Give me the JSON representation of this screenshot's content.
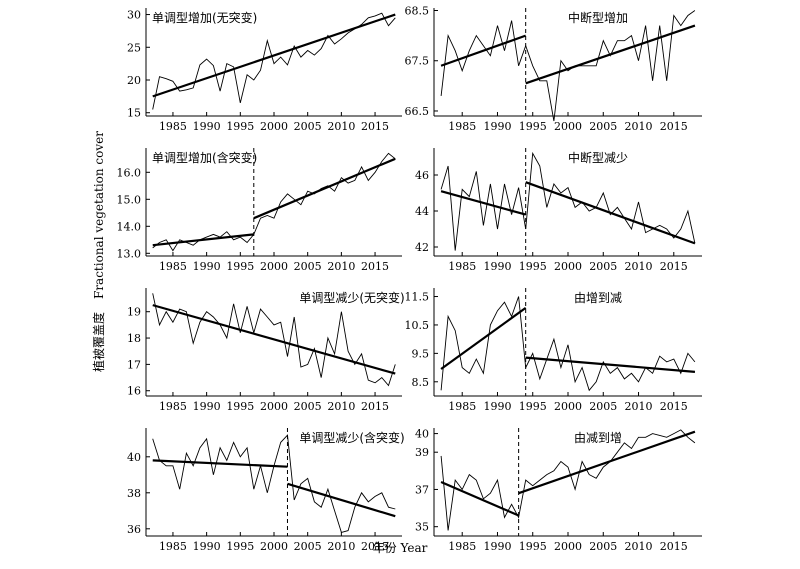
{
  "figure": {
    "ylabel_cn": "植被覆盖度",
    "ylabel_en": "Fractional vegetation cover",
    "xlabel": "年份 Year"
  },
  "chart_data": [
    {
      "type": "line",
      "title": "单调型增加(无突变)",
      "xlim": [
        1981,
        2019
      ],
      "ylim": [
        14.5,
        31
      ],
      "x_ticks": [
        1985,
        1990,
        1995,
        2000,
        2005,
        2010,
        2015
      ],
      "y_ticks": [
        15,
        20,
        25,
        30
      ],
      "x": [
        1982,
        1983,
        1984,
        1985,
        1986,
        1987,
        1988,
        1989,
        1990,
        1991,
        1992,
        1993,
        1994,
        1995,
        1996,
        1997,
        1998,
        1999,
        2000,
        2001,
        2002,
        2003,
        2004,
        2005,
        2006,
        2007,
        2008,
        2009,
        2010,
        2011,
        2012,
        2013,
        2014,
        2015,
        2016,
        2017,
        2018
      ],
      "values": [
        15.5,
        20.5,
        20.2,
        19.8,
        18.3,
        18.5,
        18.8,
        22.3,
        23.2,
        22.2,
        18.3,
        22.5,
        22.0,
        16.5,
        20.8,
        20.0,
        21.5,
        26.0,
        22.5,
        23.5,
        22.3,
        25.2,
        23.5,
        24.5,
        23.8,
        24.8,
        26.8,
        25.5,
        26.3,
        27.2,
        27.8,
        28.5,
        29.5,
        29.8,
        30.2,
        28.3,
        29.5
      ],
      "trends": [
        {
          "x": [
            1982,
            2018
          ],
          "y": [
            17.5,
            30.0
          ]
        }
      ],
      "breakpoint": null
    },
    {
      "type": "line",
      "title": "中断型增加",
      "xlim": [
        1981,
        2019
      ],
      "ylim": [
        66.4,
        68.55
      ],
      "x_ticks": [
        1985,
        1990,
        1995,
        2000,
        2005,
        2010,
        2015
      ],
      "y_ticks": [
        66.5,
        67.5,
        68.5
      ],
      "x": [
        1982,
        1983,
        1984,
        1985,
        1986,
        1987,
        1988,
        1989,
        1990,
        1991,
        1992,
        1993,
        1994,
        1995,
        1996,
        1997,
        1998,
        1999,
        2000,
        2001,
        2002,
        2003,
        2004,
        2005,
        2006,
        2007,
        2008,
        2009,
        2010,
        2011,
        2012,
        2013,
        2014,
        2015,
        2016,
        2017,
        2018
      ],
      "values": [
        66.8,
        68.0,
        67.7,
        67.3,
        67.7,
        68.0,
        67.8,
        67.6,
        68.2,
        67.7,
        68.3,
        67.4,
        67.8,
        67.4,
        67.1,
        67.1,
        66.3,
        67.5,
        67.3,
        67.4,
        67.4,
        67.4,
        67.4,
        67.9,
        67.6,
        67.9,
        67.9,
        68.0,
        67.5,
        68.2,
        67.1,
        68.2,
        67.1,
        68.4,
        68.2,
        68.4,
        68.5
      ],
      "trends": [
        {
          "x": [
            1982,
            1994
          ],
          "y": [
            67.4,
            68.0
          ]
        },
        {
          "x": [
            1994,
            2018
          ],
          "y": [
            67.05,
            68.2
          ]
        }
      ],
      "breakpoint": 1994
    },
    {
      "type": "line",
      "title": "单调型增加(含突变)",
      "xlim": [
        1981,
        2019
      ],
      "ylim": [
        12.9,
        16.9
      ],
      "x_ticks": [
        1985,
        1990,
        1995,
        2000,
        2005,
        2010,
        2015
      ],
      "y_ticks": [
        13.0,
        14.0,
        15.0,
        16.0
      ],
      "y_tick_labels": [
        "13.0",
        "14.0",
        "15.0",
        "16.0"
      ],
      "x": [
        1982,
        1983,
        1984,
        1985,
        1986,
        1987,
        1988,
        1989,
        1990,
        1991,
        1992,
        1993,
        1994,
        1995,
        1996,
        1997,
        1998,
        1999,
        2000,
        2001,
        2002,
        2003,
        2004,
        2005,
        2006,
        2007,
        2008,
        2009,
        2010,
        2011,
        2012,
        2013,
        2014,
        2015,
        2016,
        2017,
        2018
      ],
      "values": [
        13.2,
        13.4,
        13.5,
        13.1,
        13.5,
        13.4,
        13.3,
        13.5,
        13.6,
        13.7,
        13.6,
        13.8,
        13.5,
        13.6,
        13.4,
        13.7,
        14.3,
        14.4,
        14.3,
        14.9,
        15.2,
        15.0,
        14.8,
        15.3,
        15.2,
        15.4,
        15.5,
        15.3,
        15.8,
        15.6,
        15.7,
        16.2,
        15.7,
        16.0,
        16.4,
        16.7,
        16.5
      ],
      "trends": [
        {
          "x": [
            1982,
            1997
          ],
          "y": [
            13.3,
            13.7
          ]
        },
        {
          "x": [
            1997,
            2018
          ],
          "y": [
            14.3,
            16.5
          ]
        }
      ],
      "breakpoint": 1997
    },
    {
      "type": "line",
      "title": "中断型减少",
      "xlim": [
        1981,
        2019
      ],
      "ylim": [
        41.5,
        47.5
      ],
      "x_ticks": [
        1985,
        1990,
        1995,
        2000,
        2005,
        2010,
        2015
      ],
      "y_ticks": [
        42,
        44,
        46
      ],
      "x": [
        1982,
        1983,
        1984,
        1985,
        1986,
        1987,
        1988,
        1989,
        1990,
        1991,
        1992,
        1993,
        1994,
        1995,
        1996,
        1997,
        1998,
        1999,
        2000,
        2001,
        2002,
        2003,
        2004,
        2005,
        2006,
        2007,
        2008,
        2009,
        2010,
        2011,
        2012,
        2013,
        2014,
        2015,
        2016,
        2017,
        2018
      ],
      "values": [
        45.2,
        46.5,
        41.8,
        45.2,
        44.8,
        46.2,
        43.2,
        45.5,
        43.0,
        45.5,
        43.8,
        45.3,
        43.0,
        47.2,
        46.5,
        44.2,
        45.5,
        45.0,
        45.3,
        44.2,
        44.5,
        44.0,
        44.2,
        45.0,
        43.8,
        44.2,
        43.6,
        43.0,
        44.5,
        42.8,
        43.0,
        43.2,
        43.0,
        42.5,
        43.0,
        44.0,
        42.2
      ],
      "trends": [
        {
          "x": [
            1982,
            1994
          ],
          "y": [
            45.1,
            43.8
          ]
        },
        {
          "x": [
            1994,
            2018
          ],
          "y": [
            45.6,
            42.2
          ]
        }
      ],
      "breakpoint": 1994
    },
    {
      "type": "line",
      "title": "单调型减少(无突变)",
      "xlim": [
        1981,
        2019
      ],
      "ylim": [
        15.8,
        19.9
      ],
      "x_ticks": [
        1985,
        1990,
        1995,
        2000,
        2005,
        2010,
        2015
      ],
      "y_ticks": [
        16,
        17,
        18,
        19
      ],
      "x": [
        1982,
        1983,
        1984,
        1985,
        1986,
        1987,
        1988,
        1989,
        1990,
        1991,
        1992,
        1993,
        1994,
        1995,
        1996,
        1997,
        1998,
        1999,
        2000,
        2001,
        2002,
        2003,
        2004,
        2005,
        2006,
        2007,
        2008,
        2009,
        2010,
        2011,
        2012,
        2013,
        2014,
        2015,
        2016,
        2017,
        2018
      ],
      "values": [
        19.7,
        18.5,
        19.0,
        18.6,
        19.1,
        19.0,
        17.8,
        18.6,
        19.0,
        18.8,
        18.5,
        18.0,
        19.3,
        18.2,
        19.2,
        18.2,
        19.1,
        18.8,
        18.5,
        18.6,
        17.3,
        18.8,
        16.9,
        17.0,
        17.6,
        16.5,
        18.0,
        17.4,
        19.0,
        17.5,
        17.0,
        17.4,
        16.4,
        16.3,
        16.5,
        16.2,
        17.0
      ],
      "trends": [
        {
          "x": [
            1982,
            2018
          ],
          "y": [
            19.25,
            16.65
          ]
        }
      ],
      "breakpoint": null
    },
    {
      "type": "line",
      "title": "由增到减",
      "xlim": [
        1981,
        2019
      ],
      "ylim": [
        8.0,
        11.8
      ],
      "x_ticks": [
        1985,
        1990,
        1995,
        2000,
        2005,
        2010,
        2015
      ],
      "y_ticks": [
        8.5,
        9.5,
        10.5,
        11.5
      ],
      "x": [
        1982,
        1983,
        1984,
        1985,
        1986,
        1987,
        1988,
        1989,
        1990,
        1991,
        1992,
        1993,
        1994,
        1995,
        1996,
        1997,
        1998,
        1999,
        2000,
        2001,
        2002,
        2003,
        2004,
        2005,
        2006,
        2007,
        2008,
        2009,
        2010,
        2011,
        2012,
        2013,
        2014,
        2015,
        2016,
        2017,
        2018
      ],
      "values": [
        8.2,
        10.8,
        10.3,
        9.0,
        8.8,
        9.3,
        8.8,
        10.5,
        11.0,
        11.3,
        10.8,
        11.5,
        9.0,
        9.5,
        8.6,
        9.3,
        10.0,
        9.0,
        9.8,
        8.5,
        9.0,
        8.2,
        8.5,
        9.2,
        8.8,
        9.0,
        8.6,
        8.8,
        8.5,
        9.0,
        8.8,
        9.4,
        9.2,
        9.3,
        8.8,
        9.5,
        9.2
      ],
      "trends": [
        {
          "x": [
            1982,
            1994
          ],
          "y": [
            8.95,
            11.1
          ]
        },
        {
          "x": [
            1994,
            2018
          ],
          "y": [
            9.35,
            8.85
          ]
        }
      ],
      "breakpoint": 1994
    },
    {
      "type": "line",
      "title": "单调型减少(含突变)",
      "xlim": [
        1981,
        2019
      ],
      "ylim": [
        35.6,
        41.6
      ],
      "x_ticks": [
        1985,
        1990,
        1995,
        2000,
        2005,
        2010,
        2015
      ],
      "y_ticks": [
        36,
        38,
        40
      ],
      "x": [
        1982,
        1983,
        1984,
        1985,
        1986,
        1987,
        1988,
        1989,
        1990,
        1991,
        1992,
        1993,
        1994,
        1995,
        1996,
        1997,
        1998,
        1999,
        2000,
        2001,
        2002,
        2003,
        2004,
        2005,
        2006,
        2007,
        2008,
        2009,
        2010,
        2011,
        2012,
        2013,
        2014,
        2015,
        2016,
        2017,
        2018
      ],
      "values": [
        41.0,
        39.8,
        39.5,
        39.5,
        38.2,
        40.2,
        39.5,
        40.5,
        41.0,
        39.0,
        40.5,
        39.8,
        40.8,
        40.0,
        40.5,
        38.2,
        39.5,
        38.0,
        39.5,
        40.8,
        41.2,
        37.6,
        38.5,
        38.8,
        37.5,
        37.2,
        38.2,
        37.0,
        35.8,
        35.9,
        37.2,
        38.0,
        37.5,
        37.8,
        38.0,
        37.2,
        37.1
      ],
      "trends": [
        {
          "x": [
            1982,
            2002
          ],
          "y": [
            39.8,
            39.45
          ]
        },
        {
          "x": [
            2002,
            2018
          ],
          "y": [
            38.5,
            36.7
          ]
        }
      ],
      "breakpoint": 2002
    },
    {
      "type": "line",
      "title": "由减到增",
      "xlim": [
        1981,
        2019
      ],
      "ylim": [
        34.5,
        40.3
      ],
      "x_ticks": [
        1985,
        1990,
        1995,
        2000,
        2005,
        2010,
        2015
      ],
      "y_ticks": [
        35,
        37,
        39,
        40
      ],
      "y_tick_labels": [
        "35",
        "37",
        "39",
        "40"
      ],
      "x": [
        1982,
        1983,
        1984,
        1985,
        1986,
        1987,
        1988,
        1989,
        1990,
        1991,
        1992,
        1993,
        1994,
        1995,
        1996,
        1997,
        1998,
        1999,
        2000,
        2001,
        2002,
        2003,
        2004,
        2005,
        2006,
        2007,
        2008,
        2009,
        2010,
        2011,
        2012,
        2013,
        2014,
        2015,
        2016,
        2017,
        2018
      ],
      "values": [
        38.8,
        34.8,
        37.5,
        37.0,
        37.8,
        37.5,
        36.5,
        36.8,
        37.5,
        35.5,
        36.2,
        35.5,
        37.5,
        37.2,
        37.5,
        37.8,
        38.0,
        38.5,
        38.2,
        37.0,
        38.5,
        37.8,
        37.6,
        38.2,
        38.5,
        39.0,
        39.5,
        39.2,
        39.8,
        39.8,
        40.0,
        39.9,
        39.8,
        40.0,
        40.2,
        39.8,
        39.5
      ],
      "trends": [
        {
          "x": [
            1982,
            1993
          ],
          "y": [
            37.4,
            35.6
          ]
        },
        {
          "x": [
            1993,
            2018
          ],
          "y": [
            36.8,
            40.1
          ]
        }
      ],
      "breakpoint": 1993
    }
  ]
}
